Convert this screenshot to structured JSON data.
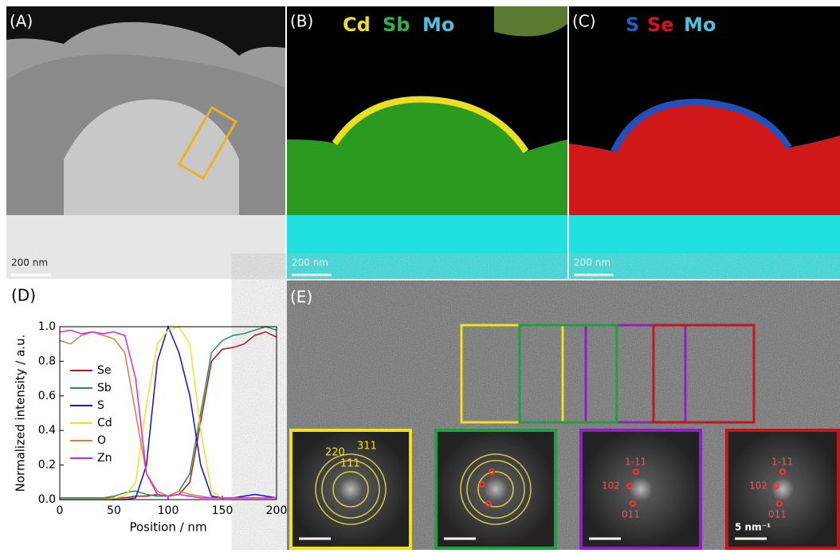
{
  "panels": {
    "a": {
      "label": "(A)",
      "scale": "200 nm"
    },
    "b": {
      "label": "(B)",
      "elements": [
        "Cd",
        "Sb",
        "Mo"
      ],
      "scale": "200 nm"
    },
    "c": {
      "label": "(C)",
      "elements": [
        "S",
        "Se",
        "Mo"
      ],
      "scale": "200 nm"
    },
    "e": {
      "label": "(E)",
      "fft1": [
        "220",
        "311",
        "111"
      ],
      "fft3": [
        "1-11",
        "102",
        "011"
      ],
      "fft4": [
        "1-11",
        "102",
        "011"
      ],
      "scale": "5 nm⁻¹"
    }
  },
  "chart_data": {
    "type": "line",
    "label": "(D)",
    "x_label": "Position / nm",
    "y_label": "Normalized intensity / a.u.",
    "x": [
      0,
      10,
      20,
      30,
      40,
      50,
      60,
      70,
      80,
      90,
      100,
      110,
      120,
      130,
      140,
      150,
      160,
      170,
      180,
      190,
      200
    ],
    "xlim": [
      0,
      200
    ],
    "ylim": [
      0,
      1
    ],
    "xticks": [
      0,
      50,
      100,
      150,
      200
    ],
    "yticks": [
      {
        "value": 0,
        "label": "0.0"
      },
      0.2,
      0.4,
      0.6,
      0.8,
      {
        "value": 1,
        "label": "1.0"
      }
    ],
    "series": [
      {
        "name": "Se",
        "color": "#b01818",
        "values": [
          0.01,
          0.01,
          0.01,
          0.01,
          0.01,
          0.01,
          0.01,
          0.02,
          0.02,
          0.03,
          0.02,
          0.03,
          0.1,
          0.45,
          0.8,
          0.87,
          0.88,
          0.9,
          0.95,
          0.97,
          0.94
        ]
      },
      {
        "name": "Sb",
        "color": "#2e8b57",
        "values": [
          0.01,
          0.01,
          0.01,
          0.01,
          0.01,
          0.02,
          0.04,
          0.05,
          0.03,
          0.02,
          0.02,
          0.05,
          0.15,
          0.5,
          0.85,
          0.92,
          0.95,
          0.96,
          0.98,
          1,
          0.98
        ]
      },
      {
        "name": "S",
        "color": "#1010d0",
        "values": [
          0,
          0,
          0,
          0,
          0,
          0,
          0,
          0.01,
          0.2,
          0.8,
          1,
          0.85,
          0.6,
          0.2,
          0.02,
          0.01,
          0.01,
          0.02,
          0.03,
          0.02,
          0.01
        ]
      },
      {
        "name": "Cd",
        "color": "#f0e020",
        "values": [
          0,
          0,
          0,
          0,
          0,
          0.01,
          0.02,
          0.1,
          0.55,
          0.9,
          0.98,
          1,
          0.9,
          0.4,
          0.05,
          0.01,
          0.01,
          0.01,
          0.01,
          0.01,
          0.01
        ]
      },
      {
        "name": "O",
        "color": "#d08040",
        "values": [
          0.92,
          0.9,
          0.95,
          0.97,
          0.95,
          0.93,
          0.85,
          0.5,
          0.15,
          0.05,
          0.02,
          0.05,
          0.03,
          0.02,
          0.01,
          0.01,
          0.01,
          0.01,
          0.01,
          0.01,
          0.01
        ]
      },
      {
        "name": "Zn",
        "color": "#e020e0",
        "values": [
          0.97,
          0.98,
          0.96,
          0.97,
          0.96,
          0.97,
          0.95,
          0.7,
          0.15,
          0.03,
          0.02,
          0.03,
          0.02,
          0.01,
          0.01,
          0.01,
          0.01,
          0.01,
          0.01,
          0.01,
          0.01
        ]
      }
    ]
  }
}
